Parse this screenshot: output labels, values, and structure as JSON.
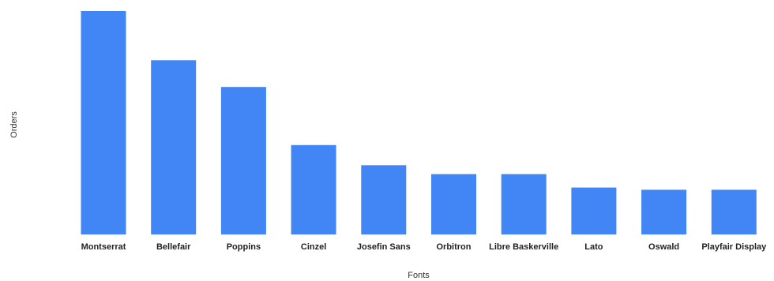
{
  "chart_data": {
    "type": "bar",
    "title": "",
    "xlabel": "Fonts",
    "ylabel": "Orders",
    "categories": [
      "Montserrat",
      "Bellefair",
      "Poppins",
      "Cinzel",
      "Josefin Sans",
      "Orbitron",
      "Libre Baskerville",
      "Lato",
      "Oswald",
      "Playfair Display"
    ],
    "values": [
      100,
      78,
      66,
      40,
      31,
      27,
      27,
      21,
      20,
      20
    ],
    "ylim": [
      0,
      100
    ],
    "grid": false,
    "legend": "none",
    "bar_color": "#4285F4"
  }
}
